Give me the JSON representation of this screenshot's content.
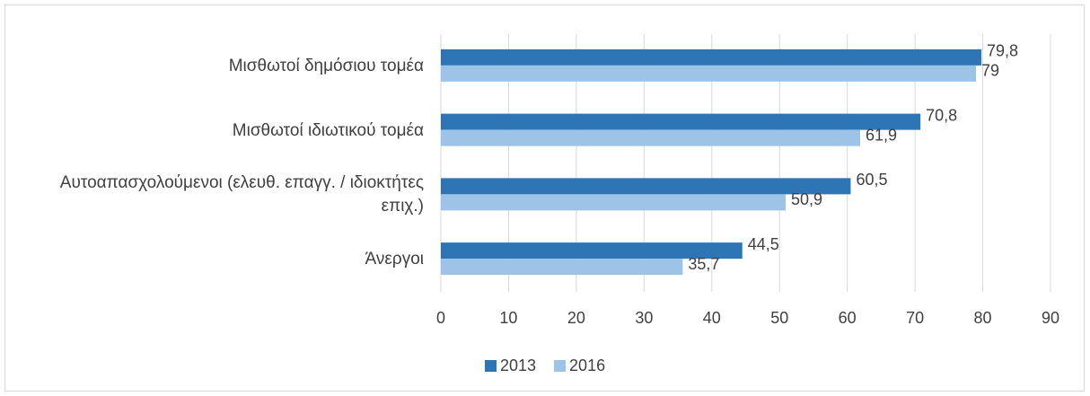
{
  "chart_data": {
    "type": "hbar",
    "categories": [
      "Μισθωτοί δημόσιου τομέα",
      "Μισθωτοί ιδιωτικού τομέα",
      "Αυτοαπασχολούμενοι (ελευθ. επαγγ. / ιδιοκτήτες επιχ.)",
      "Άνεργοι"
    ],
    "series": [
      {
        "name": "2013",
        "color": "#2e75b6",
        "values": [
          79.8,
          70.8,
          60.5,
          44.5
        ],
        "value_labels": [
          "79,8",
          "70,8",
          "60,5",
          "44,5"
        ]
      },
      {
        "name": "2016",
        "color": "#9dc3e6",
        "values": [
          79,
          61.9,
          50.9,
          35.7
        ],
        "value_labels": [
          "79",
          "61,9",
          "50,9",
          "35,7"
        ]
      }
    ],
    "xlim": [
      0,
      90
    ],
    "xticks": [
      0,
      10,
      20,
      30,
      40,
      50,
      60,
      70,
      80,
      90
    ],
    "grid": true,
    "legend": "bottom"
  }
}
